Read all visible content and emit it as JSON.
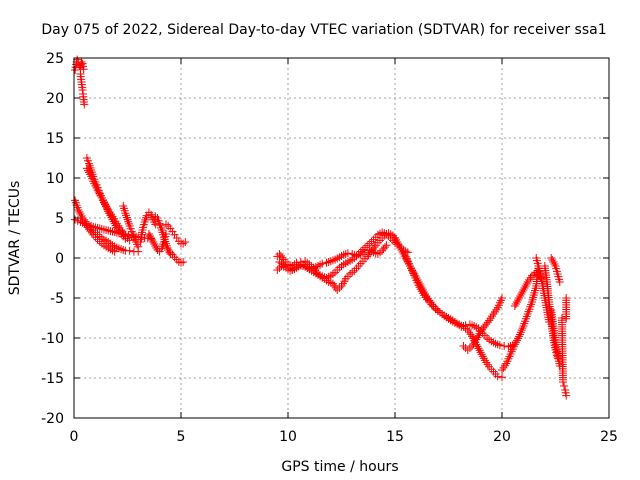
{
  "chart_data": {
    "type": "scatter",
    "title": "Day 075 of 2022, Sidereal Day-to-day VTEC variation (SDTVAR) for receiver ssa1",
    "xlabel": "GPS time / hours",
    "ylabel": "SDTVAR / TECUs",
    "xlim": [
      0,
      25
    ],
    "ylim": [
      -20,
      25
    ],
    "xticks": [
      0,
      5,
      10,
      15,
      20,
      25
    ],
    "yticks": [
      -20,
      -15,
      -10,
      -5,
      0,
      5,
      10,
      15,
      20,
      25
    ],
    "grid": true,
    "marker": "+",
    "series": [
      {
        "name": "SDTVAR",
        "color": "#ff0000",
        "tracks": [
          {
            "x": [
              0.05,
              0.1,
              0.15,
              0.2,
              0.25,
              0.3,
              0.35,
              0.4,
              0.45
            ],
            "y": [
              23.5,
              24.2,
              24.8,
              24.5,
              24.0,
              23.8,
              24.5,
              24.3,
              23.6
            ]
          },
          {
            "x": [
              0.3,
              0.35,
              0.4,
              0.42,
              0.45,
              0.48
            ],
            "y": [
              23.0,
              22.0,
              21.0,
              20.5,
              19.8,
              19.2
            ]
          },
          {
            "x": [
              0.05,
              0.2,
              0.4,
              0.6,
              0.8,
              1.0,
              1.2,
              1.4,
              1.6,
              1.8,
              2.0,
              2.2,
              2.4,
              2.6,
              2.8,
              3.0
            ],
            "y": [
              7.2,
              6.0,
              5.0,
              4.3,
              3.8,
              3.2,
              2.7,
              2.3,
              2.0,
              1.6,
              1.3,
              1.1,
              0.9,
              0.9,
              0.8,
              0.8
            ]
          },
          {
            "x": [
              0.05,
              0.3,
              0.6,
              0.9,
              1.2,
              1.5,
              1.8,
              2.1,
              2.4,
              2.7,
              3.0,
              3.3,
              3.6
            ],
            "y": [
              4.8,
              4.5,
              4.2,
              3.9,
              3.7,
              3.5,
              3.3,
              3.1,
              2.9,
              2.8,
              2.6,
              2.5,
              2.4
            ]
          },
          {
            "x": [
              0.5,
              0.7,
              0.9,
              1.1,
              1.3,
              1.5,
              1.7,
              1.9
            ],
            "y": [
              4.3,
              3.6,
              2.9,
              2.3,
              1.8,
              1.4,
              1.1,
              0.8
            ]
          },
          {
            "x": [
              0.6,
              0.7,
              0.8,
              0.9,
              1.0,
              1.1,
              1.2,
              1.3,
              1.4,
              1.5,
              1.6,
              1.7,
              1.8,
              1.9,
              2.0,
              2.1,
              2.2,
              2.3,
              2.4
            ],
            "y": [
              12.5,
              11.8,
              11.0,
              10.2,
              9.5,
              8.8,
              8.1,
              7.5,
              6.9,
              6.4,
              5.8,
              5.3,
              4.8,
              4.3,
              3.8,
              3.4,
              3.0,
              2.7,
              2.4
            ]
          },
          {
            "x": [
              0.6,
              0.8,
              1.0,
              1.2,
              1.4,
              1.6,
              1.8,
              2.0,
              2.2,
              2.4,
              2.6
            ],
            "y": [
              11.2,
              10.2,
              9.0,
              8.0,
              7.0,
              6.0,
              5.2,
              4.3,
              3.5,
              2.8,
              2.2
            ]
          },
          {
            "x": [
              2.3,
              2.4,
              2.5,
              2.6,
              2.7,
              2.8,
              2.9,
              3.0
            ],
            "y": [
              6.5,
              5.6,
              4.8,
              4.0,
              3.3,
              2.6,
              2.0,
              1.4
            ]
          },
          {
            "x": [
              3.1,
              3.2,
              3.3,
              3.4,
              3.5,
              3.6,
              3.7,
              3.8
            ],
            "y": [
              2.0,
              3.5,
              4.5,
              5.3,
              5.7,
              5.4,
              4.8,
              4.2
            ]
          },
          {
            "x": [
              3.5,
              3.6,
              3.7,
              3.8,
              3.9,
              4.0,
              4.1,
              4.2,
              4.3
            ],
            "y": [
              3.0,
              2.5,
              2.0,
              1.5,
              1.0,
              0.8,
              1.2,
              2.0,
              3.0
            ]
          },
          {
            "x": [
              3.8,
              3.9,
              4.0,
              4.1,
              4.2,
              4.3,
              4.4,
              4.5
            ],
            "y": [
              5.2,
              5.0,
              4.3,
              3.5,
              2.6,
              1.8,
              1.0,
              0.5
            ]
          },
          {
            "x": [
              4.3,
              4.4,
              4.5,
              4.6,
              4.7,
              4.8,
              4.9,
              5.0,
              5.1,
              5.2
            ],
            "y": [
              4.2,
              4.0,
              3.7,
              3.3,
              2.9,
              2.5,
              2.1,
              1.8,
              1.8,
              2.0
            ]
          },
          {
            "x": [
              4.4,
              4.5,
              4.6,
              4.7,
              4.8,
              4.9,
              5.0,
              5.1
            ],
            "y": [
              1.0,
              0.7,
              0.4,
              0.1,
              -0.2,
              -0.5,
              -0.6,
              -0.5
            ]
          },
          {
            "x": [
              9.5,
              9.6,
              9.8,
              10.0,
              10.2,
              10.4,
              10.6,
              10.8,
              11.0,
              11.2,
              11.4,
              11.6,
              11.8,
              12.0,
              12.2,
              12.4,
              12.6,
              12.8,
              13.0,
              13.2,
              13.4,
              13.6,
              13.8,
              14.0,
              14.2,
              14.4,
              14.6,
              14.8,
              15.0,
              15.2,
              15.4,
              15.6
            ],
            "y": [
              0.2,
              0.5,
              -0.2,
              -0.8,
              -1.0,
              -0.6,
              -0.5,
              -0.4,
              -0.8,
              -1.3,
              -2.0,
              -2.3,
              -2.5,
              -2.2,
              -1.8,
              -1.2,
              -0.8,
              -0.5,
              -0.2,
              0.2,
              0.8,
              1.3,
              1.8,
              2.3,
              2.9,
              3.2,
              3.0,
              2.5,
              1.9,
              1.5,
              1.0,
              0.7
            ]
          },
          {
            "x": [
              9.5,
              9.7,
              9.9,
              10.1,
              10.3,
              10.5,
              10.7,
              10.9,
              11.1,
              11.3,
              11.5,
              11.7,
              11.9,
              12.1,
              12.3,
              12.5,
              12.7,
              12.9,
              13.1,
              13.3,
              13.5,
              13.7,
              13.9,
              14.1,
              14.3,
              14.5,
              14.7,
              14.9,
              15.1
            ],
            "y": [
              -1.5,
              -1.0,
              -1.2,
              -1.6,
              -1.4,
              -1.0,
              -0.8,
              -1.2,
              -1.6,
              -1.9,
              -2.3,
              -2.6,
              -3.0,
              -3.2,
              -4.0,
              -3.5,
              -2.6,
              -2.0,
              -1.6,
              -1.0,
              -0.4,
              0.2,
              0.9,
              1.6,
              2.2,
              2.8,
              3.1,
              2.8,
              2.0
            ]
          },
          {
            "x": [
              9.6,
              9.8,
              10.0,
              10.2,
              10.4,
              10.6,
              10.8,
              11.0,
              11.2,
              11.4,
              11.6,
              11.8,
              12.0,
              12.2,
              12.4,
              12.6,
              12.8,
              13.0,
              13.2,
              13.4,
              13.6,
              13.8,
              14.0,
              14.2,
              14.4,
              14.6
            ],
            "y": [
              -0.5,
              -0.8,
              -1.0,
              -1.5,
              -1.2,
              -0.9,
              -1.1,
              -1.4,
              -1.2,
              -1.0,
              -0.7,
              -0.6,
              -0.4,
              -0.2,
              0.1,
              0.4,
              0.6,
              0.5,
              0.3,
              0.4,
              0.9,
              1.0,
              0.7,
              0.5,
              0.9,
              1.6
            ]
          },
          {
            "x": [
              15.0,
              15.2,
              15.4,
              15.6,
              15.8,
              16.0,
              16.2,
              16.4,
              16.6,
              16.8,
              17.0,
              17.2,
              17.4,
              17.6,
              17.8,
              18.0,
              18.2,
              18.4,
              18.6,
              18.8,
              19.0,
              19.2,
              19.4,
              19.6,
              19.8,
              20.0
            ],
            "y": [
              2.5,
              1.5,
              0.5,
              -0.5,
              -1.5,
              -2.5,
              -3.5,
              -4.5,
              -5.3,
              -6.0,
              -6.6,
              -7.0,
              -7.4,
              -7.8,
              -8.1,
              -8.3,
              -8.6,
              -9.0,
              -9.8,
              -10.8,
              -11.8,
              -12.8,
              -13.6,
              -14.2,
              -14.8,
              -14.9
            ]
          },
          {
            "x": [
              15.5,
              15.7,
              15.9,
              16.1,
              16.3,
              16.5,
              16.7,
              16.9,
              17.1,
              17.3,
              17.5,
              17.7,
              17.9,
              18.1,
              18.3,
              18.5,
              18.7,
              18.9,
              19.1,
              19.3,
              19.5,
              19.7,
              19.9,
              20.1,
              20.3,
              20.5
            ],
            "y": [
              0.2,
              -1.0,
              -2.2,
              -3.4,
              -4.4,
              -5.2,
              -5.8,
              -6.4,
              -6.8,
              -7.2,
              -7.5,
              -7.8,
              -8.2,
              -8.6,
              -8.4,
              -8.3,
              -8.5,
              -8.8,
              -9.4,
              -10.0,
              -10.4,
              -10.7,
              -10.9,
              -11.0,
              -11.1,
              -10.9
            ]
          },
          {
            "x": [
              18.2,
              18.4,
              18.6,
              18.8,
              19.0,
              19.2,
              19.4,
              19.6,
              19.8,
              20.0
            ],
            "y": [
              -11.0,
              -11.5,
              -11.0,
              -10.2,
              -9.2,
              -8.5,
              -7.8,
              -7.0,
              -6.2,
              -5.0
            ]
          },
          {
            "x": [
              20.0,
              20.2,
              20.4,
              20.6,
              20.8,
              21.0,
              21.2,
              21.4,
              21.6,
              21.7
            ],
            "y": [
              -14.0,
              -13.2,
              -12.0,
              -10.8,
              -9.8,
              -8.5,
              -7.0,
              -5.5,
              -3.5,
              -1.0
            ]
          },
          {
            "x": [
              20.6,
              20.8,
              21.0,
              21.2,
              21.4,
              21.6,
              21.8
            ],
            "y": [
              -6.0,
              -5.0,
              -4.0,
              -3.0,
              -2.2,
              -1.8,
              -2.5
            ]
          },
          {
            "x": [
              21.6,
              21.7,
              21.8,
              21.9,
              22.0,
              22.1,
              22.2
            ],
            "y": [
              0.0,
              -1.0,
              -2.0,
              -3.5,
              -5.0,
              -6.5,
              -8.0
            ]
          },
          {
            "x": [
              22.0,
              22.1,
              22.2,
              22.3,
              22.4,
              22.5,
              22.6
            ],
            "y": [
              -1.0,
              -3.0,
              -5.5,
              -8.0,
              -10.0,
              -11.5,
              -12.5
            ]
          },
          {
            "x": [
              22.3,
              22.4,
              22.5,
              22.6,
              22.7
            ],
            "y": [
              -6.5,
              -8.5,
              -10.5,
              -12.0,
              -13.5
            ]
          },
          {
            "x": [
              22.3,
              22.4,
              22.5,
              22.6,
              22.7
            ],
            "y": [
              0.0,
              -0.5,
              -1.0,
              -2.0,
              -3.0
            ]
          },
          {
            "x": [
              22.8,
              22.85,
              22.9,
              22.95,
              23.0
            ],
            "y": [
              -7.5,
              -15.5,
              -16.0,
              -16.5,
              -17.2
            ]
          },
          {
            "x": [
              23.0,
              23.0
            ],
            "y": [
              -5.0,
              -7.6
            ]
          }
        ]
      }
    ]
  }
}
